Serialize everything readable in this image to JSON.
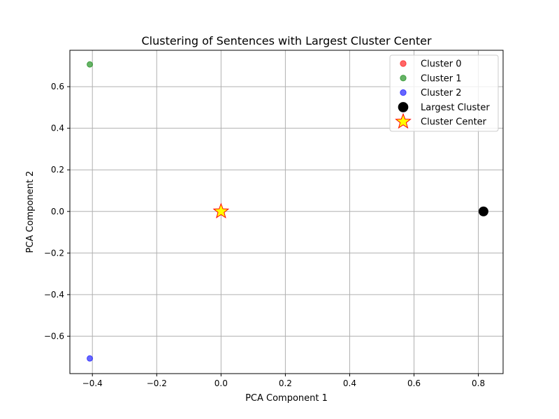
{
  "chart_data": {
    "type": "scatter",
    "title": "Clustering of Sentences with Largest Cluster Center",
    "xlabel": "PCA Component 1",
    "ylabel": "PCA Component 2",
    "xlim": [
      -0.47,
      0.877
    ],
    "ylim": [
      -0.78,
      0.775
    ],
    "xticks": [
      -0.4,
      -0.2,
      0.0,
      0.2,
      0.4,
      0.6,
      0.8
    ],
    "xtick_labels": [
      "−0.4",
      "−0.2",
      "0.0",
      "0.2",
      "0.4",
      "0.6",
      "0.8"
    ],
    "yticks": [
      -0.6,
      -0.4,
      -0.2,
      0.0,
      0.2,
      0.4,
      0.6
    ],
    "ytick_labels": [
      "−0.6",
      "−0.4",
      "−0.2",
      "0.0",
      "0.2",
      "0.4",
      "0.6"
    ],
    "grid": true,
    "legend_position": "top-right",
    "series": [
      {
        "name": "Cluster 0",
        "marker": "circle",
        "color": "#ff0000",
        "alpha": 0.6,
        "points": [
          [
            0.816,
            0.0
          ]
        ]
      },
      {
        "name": "Cluster 1",
        "marker": "circle",
        "color": "#008000",
        "alpha": 0.6,
        "points": [
          [
            -0.408,
            0.707
          ]
        ]
      },
      {
        "name": "Cluster 2",
        "marker": "circle",
        "color": "#0000ff",
        "alpha": 0.6,
        "points": [
          [
            -0.408,
            -0.707
          ]
        ]
      },
      {
        "name": "Largest Cluster",
        "marker": "circle-large",
        "color": "#000000",
        "alpha": 1.0,
        "points": [
          [
            0.816,
            0.0
          ]
        ]
      },
      {
        "name": "Cluster Center",
        "marker": "star",
        "color": "#ffff00",
        "edge_color": "#ff0000",
        "alpha": 1.0,
        "points": [
          [
            0.0,
            0.0
          ]
        ]
      }
    ]
  }
}
